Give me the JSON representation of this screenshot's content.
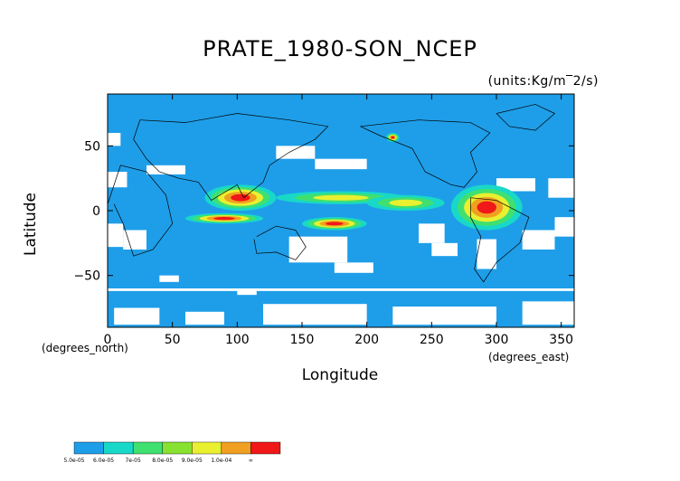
{
  "chart_data": {
    "type": "heatmap",
    "title": "PRATE_1980-SON_NCEP",
    "units_label": "(units:Kg/m^2/s)",
    "xlabel": "Longitude",
    "ylabel": "Latitude",
    "x_unit": "(degrees_north)",
    "x_unit2": "(degrees_east)",
    "xlim": [
      0,
      360
    ],
    "ylim": [
      -90,
      90
    ],
    "x_ticks": [
      0,
      50,
      100,
      150,
      200,
      250,
      300,
      350
    ],
    "y_ticks": [
      50,
      0,
      -50
    ],
    "colorbar": {
      "colors": [
        "#1e9ee8",
        "#18d8c8",
        "#40e070",
        "#88e030",
        "#e8f030",
        "#f0a020",
        "#f01818"
      ],
      "labels": [
        "5.0e-05",
        "6.0e-05",
        "7e-05",
        "8.0e-05",
        "9.0e-05",
        "1.0e-04",
        "∞"
      ]
    },
    "background_color": "#1e9ee8",
    "missing_color": "#ffffff",
    "bands": [
      {
        "level": "high",
        "lon": [
          75,
          130
        ],
        "lat": [
          0,
          20
        ]
      },
      {
        "level": "high",
        "lon": [
          265,
          320
        ],
        "lat": [
          -15,
          20
        ]
      },
      {
        "level": "high",
        "lon": [
          60,
          120
        ],
        "lat": [
          -10,
          -2
        ]
      },
      {
        "level": "high",
        "lon": [
          150,
          200
        ],
        "lat": [
          -15,
          -5
        ]
      },
      {
        "level": "mid",
        "lon": [
          130,
          230
        ],
        "lat": [
          5,
          15
        ]
      },
      {
        "level": "mid",
        "lon": [
          200,
          260
        ],
        "lat": [
          0,
          12
        ]
      },
      {
        "level": "high",
        "lon": [
          215,
          225
        ],
        "lat": [
          53,
          60
        ]
      }
    ]
  }
}
